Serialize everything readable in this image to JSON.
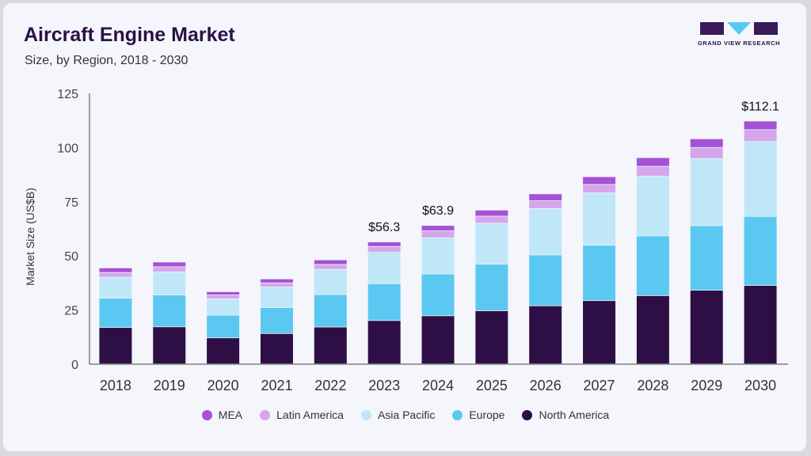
{
  "header": {
    "title": "Aircraft Engine Market",
    "subtitle": "Size, by Region, 2018 - 2030"
  },
  "logo": {
    "text": "GRAND VIEW RESEARCH",
    "colors": {
      "dark": "#3a1a58",
      "accent": "#5ac8f5"
    }
  },
  "chart_data": {
    "type": "bar",
    "stacked": true,
    "categories": [
      "2018",
      "2019",
      "2020",
      "2021",
      "2022",
      "2023",
      "2024",
      "2025",
      "2026",
      "2027",
      "2028",
      "2029",
      "2030"
    ],
    "ylabel": "Market Size (US$B)",
    "xlabel": "",
    "ylim": [
      0,
      125
    ],
    "yticks": [
      0,
      25,
      50,
      75,
      100,
      125
    ],
    "grid": false,
    "legend_position": "bottom",
    "series": [
      {
        "name": "North America",
        "color": "#2e0f45",
        "values": [
          16.8,
          17.1,
          12.0,
          14.0,
          17.0,
          20.0,
          22.2,
          24.5,
          26.8,
          29.2,
          31.5,
          34.0,
          36.2
        ]
      },
      {
        "name": "Europe",
        "color": "#5bc8f2",
        "values": [
          13.5,
          14.7,
          10.5,
          12.0,
          15.0,
          17.0,
          19.3,
          21.5,
          23.5,
          25.6,
          27.6,
          29.8,
          31.9
        ]
      },
      {
        "name": "Asia Pacific",
        "color": "#bfe7f8",
        "values": [
          9.7,
          10.6,
          7.5,
          9.5,
          11.6,
          14.5,
          16.7,
          18.9,
          21.4,
          24.1,
          27.5,
          31.0,
          34.5
        ]
      },
      {
        "name": "Latin America",
        "color": "#d5a6ec",
        "values": [
          2.2,
          2.4,
          1.8,
          1.9,
          2.3,
          2.7,
          3.2,
          3.3,
          3.6,
          3.9,
          4.6,
          5.1,
          5.5
        ]
      },
      {
        "name": "MEA",
        "color": "#a452d6",
        "values": [
          2.1,
          2.2,
          1.5,
          1.8,
          2.1,
          2.1,
          2.5,
          2.8,
          3.2,
          3.6,
          4.0,
          4.0,
          4.0
        ]
      }
    ],
    "annotations": [
      {
        "category": "2023",
        "label": "$56.3"
      },
      {
        "category": "2024",
        "label": "$63.9"
      },
      {
        "category": "2030",
        "label": "$112.1"
      }
    ]
  }
}
